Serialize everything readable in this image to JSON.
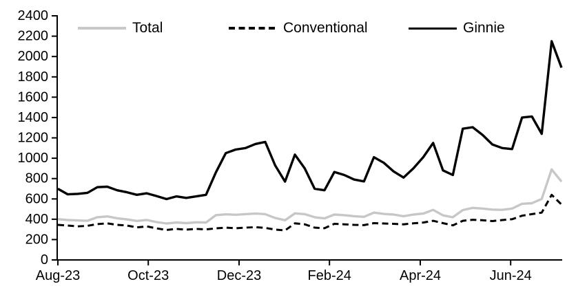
{
  "chart_data": {
    "type": "line",
    "title": "",
    "xlabel": "",
    "ylabel": "",
    "grid": false,
    "legend_position": "top",
    "y_axis": {
      "min": 0,
      "max": 2400,
      "step": 200
    },
    "x_axis": {
      "frequency": "weekly",
      "n_points": 52,
      "tick_labels": [
        "Aug-23",
        "Oct-23",
        "Dec-23",
        "Feb-24",
        "Apr-24",
        "Jun-24"
      ],
      "tick_indices": [
        0,
        9.15,
        18.35,
        27.5,
        36.7,
        45.85
      ]
    },
    "series": [
      {
        "name": "Total",
        "color": "#c7c7c7",
        "style": "solid",
        "width": 3.4,
        "values": [
          400,
          393,
          388,
          385,
          420,
          428,
          410,
          398,
          383,
          393,
          372,
          358,
          368,
          362,
          370,
          368,
          440,
          448,
          444,
          450,
          456,
          450,
          413,
          390,
          458,
          450,
          420,
          408,
          446,
          440,
          430,
          424,
          465,
          452,
          446,
          430,
          446,
          456,
          492,
          438,
          420,
          490,
          512,
          505,
          495,
          492,
          505,
          552,
          558,
          600,
          890,
          770
        ]
      },
      {
        "name": "Conventional",
        "color": "#000000",
        "style": "dashed",
        "width": 3,
        "values": [
          345,
          338,
          330,
          335,
          352,
          360,
          345,
          338,
          320,
          330,
          310,
          295,
          305,
          298,
          305,
          300,
          310,
          318,
          312,
          318,
          322,
          315,
          298,
          290,
          360,
          350,
          318,
          312,
          355,
          350,
          345,
          342,
          362,
          358,
          355,
          350,
          360,
          368,
          385,
          362,
          340,
          385,
          395,
          390,
          382,
          392,
          400,
          435,
          450,
          465,
          640,
          545
        ]
      },
      {
        "name": "Ginnie",
        "color": "#000000",
        "style": "solid",
        "width": 3.4,
        "values": [
          700,
          645,
          650,
          660,
          715,
          720,
          685,
          665,
          640,
          655,
          628,
          598,
          625,
          610,
          625,
          640,
          860,
          1050,
          1085,
          1100,
          1140,
          1160,
          930,
          770,
          1035,
          900,
          700,
          685,
          865,
          835,
          790,
          772,
          1010,
          955,
          870,
          810,
          900,
          1010,
          1150,
          880,
          835,
          1290,
          1305,
          1230,
          1135,
          1100,
          1090,
          1400,
          1410,
          1240,
          2150,
          1890
        ]
      }
    ],
    "legend_entries": [
      "Total",
      "Conventional",
      "Ginnie"
    ]
  }
}
